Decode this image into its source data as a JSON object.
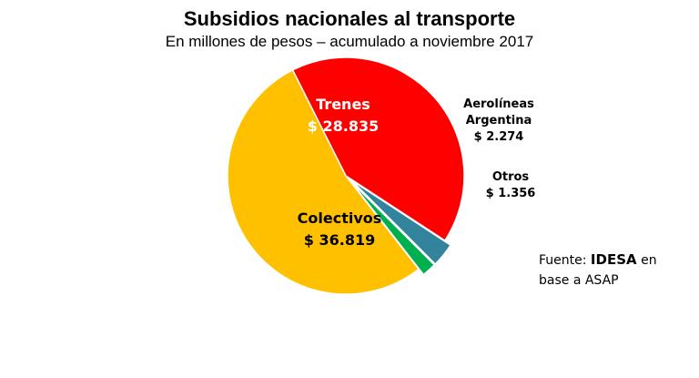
{
  "chart_data": {
    "type": "pie",
    "title": "Subsidios nacionales al transporte",
    "subtitle": "En millones de pesos – acumulado a noviembre 2017",
    "unit": "millones de pesos",
    "slices": [
      {
        "label": "Colectivos",
        "label_lines": [
          "Colectivos"
        ],
        "value": 36819,
        "value_text": "$ 36.819",
        "color": "#FFC000",
        "text_color": "#000000",
        "exploded": false,
        "label_inside": true
      },
      {
        "label": "Trenes",
        "label_lines": [
          "Trenes"
        ],
        "value": 28835,
        "value_text": "$ 28.835",
        "color": "#FF0000",
        "text_color": "#FFFFFF",
        "exploded": false,
        "label_inside": true
      },
      {
        "label": "Aerolíneas Argentina",
        "label_lines": [
          "Aerolíneas",
          "Argentina"
        ],
        "value": 2274,
        "value_text": "$ 2.274",
        "color": "#31849B",
        "text_color": "#000000",
        "exploded": true,
        "label_inside": false
      },
      {
        "label": "Otros",
        "label_lines": [
          "Otros"
        ],
        "value": 1356,
        "value_text": "$ 1.356",
        "color": "#00B050",
        "text_color": "#000000",
        "exploded": true,
        "label_inside": false
      }
    ]
  },
  "source": {
    "prefix": "Fuente: ",
    "brand": "IDESA",
    "suffix": " en",
    "line2": "base a ASAP"
  }
}
